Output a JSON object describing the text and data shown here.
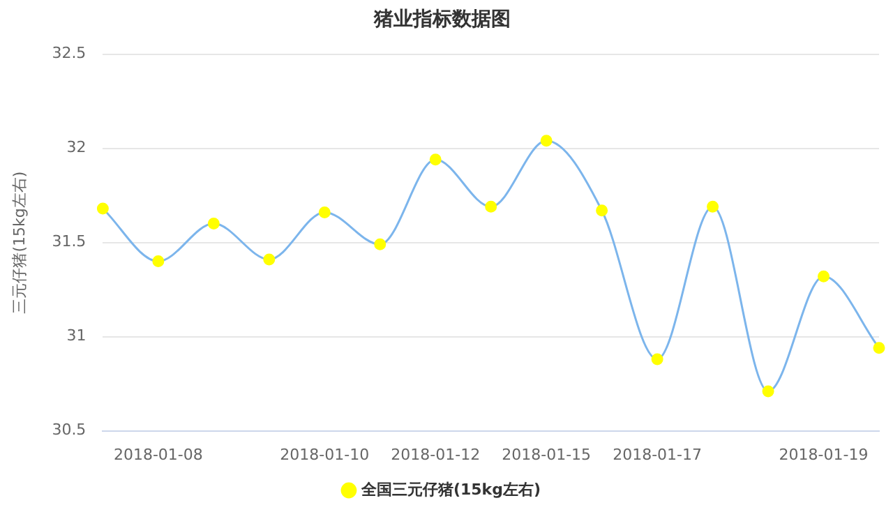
{
  "chart_data": {
    "type": "line",
    "title": "猪业指标数据图",
    "ylabel": "三元仔猪(15kg左右)",
    "categories": [
      null,
      "2018-01-08",
      null,
      null,
      "2018-01-10",
      null,
      "2018-01-12",
      null,
      "2018-01-15",
      null,
      "2018-01-17",
      null,
      null,
      "2018-01-19",
      null
    ],
    "series": [
      {
        "name": "全国三元仔猪(15kg左右)",
        "color": "#7cb5ec",
        "values": [
          31.68,
          31.4,
          31.6,
          31.41,
          31.66,
          31.49,
          31.94,
          31.69,
          32.04,
          31.67,
          30.88,
          31.69,
          30.71,
          31.32,
          30.94
        ]
      }
    ],
    "ylim": [
      30.5,
      32.5
    ],
    "yticks": [
      30.5,
      31,
      31.5,
      32,
      32.5
    ],
    "grid": "y",
    "legend": "bottom",
    "marker": "circle"
  }
}
